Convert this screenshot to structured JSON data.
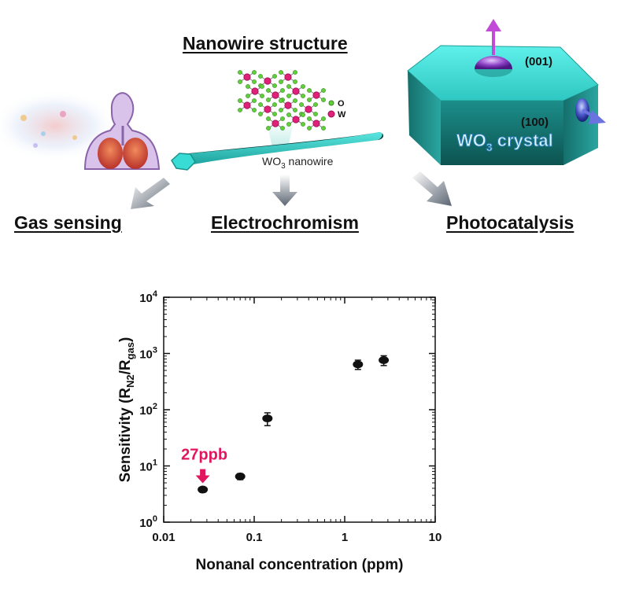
{
  "diagram": {
    "title": "Nanowire structure",
    "wire_label": "WO3 nanowire",
    "atom_legend": [
      {
        "symbol": "O",
        "color": "#5fcf3a"
      },
      {
        "symbol": "W",
        "color": "#e0217a"
      }
    ],
    "crystal_label": "WO3 crystal",
    "facets": [
      "(001)",
      "(100)"
    ],
    "applications": [
      "Gas sensing",
      "Electrochromism",
      "Photocatalysis"
    ],
    "colors": {
      "crystal": "#36d6d0",
      "wire": "#2ec9c3",
      "accent_magenta": "#d6208c"
    }
  },
  "chart_data": {
    "type": "scatter",
    "title": "",
    "xlabel": "Nonanal concentration (ppm)",
    "ylabel": "Sensitivity (RN2/Rgas)",
    "x_scale": "log",
    "y_scale": "log",
    "xlim": [
      0.01,
      10
    ],
    "ylim": [
      1,
      10000
    ],
    "x_tick_labels": [
      "0.01",
      "0.1",
      "1",
      "10"
    ],
    "y_tick_labels": [
      "10^0",
      "10^1",
      "10^2",
      "10^3",
      "10^4"
    ],
    "grid": false,
    "series": [
      {
        "x": [
          0.027,
          0.07,
          0.14,
          1.4,
          2.7
        ],
        "y": [
          3.8,
          6.5,
          70,
          640,
          760
        ],
        "y_err": [
          0.3,
          0.8,
          18,
          120,
          150
        ]
      }
    ],
    "annotation": {
      "text": "27ppb",
      "x": 0.027,
      "y": 3.8,
      "color": "#e0175e"
    }
  }
}
